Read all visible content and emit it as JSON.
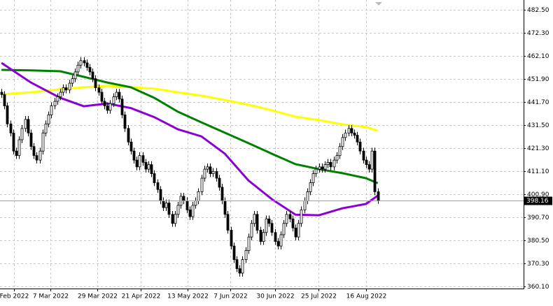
{
  "chart_data": {
    "type": "candlestick",
    "ylim": [
      359.2,
      486.8
    ],
    "xlim": [
      -0.5,
      177.6
    ],
    "grid": true,
    "yticks": [
      {
        "value": 482.5,
        "label": "482.50"
      },
      {
        "value": 472.3,
        "label": "472.30"
      },
      {
        "value": 462.1,
        "label": "462.10"
      },
      {
        "value": 451.9,
        "label": "451.90"
      },
      {
        "value": 441.7,
        "label": "441.70"
      },
      {
        "value": 431.5,
        "label": "431.50"
      },
      {
        "value": 421.3,
        "label": "421.30"
      },
      {
        "value": 411.1,
        "label": "411.10"
      },
      {
        "value": 400.9,
        "label": "400.90"
      },
      {
        "value": 390.7,
        "label": "390.70"
      },
      {
        "value": 380.5,
        "label": "380.50"
      },
      {
        "value": 370.3,
        "label": "370.30"
      },
      {
        "value": 360.1,
        "label": "360.10"
      }
    ],
    "xticks": [
      {
        "value": 4.3,
        "label": "Feb 2022"
      },
      {
        "value": 16.6,
        "label": "7 Mar 2022"
      },
      {
        "value": 32.6,
        "label": "29 Mar 2022"
      },
      {
        "value": 47.4,
        "label": "21 Apr 2022"
      },
      {
        "value": 63.3,
        "label": "13 May 2022"
      },
      {
        "value": 77.8,
        "label": "7 Jun 2022"
      },
      {
        "value": 93,
        "label": "30 Jun 2022"
      },
      {
        "value": 107.8,
        "label": "25 Jul 2022"
      },
      {
        "value": 124,
        "label": "16 Aug 2022"
      }
    ],
    "current_price": 398.16,
    "open": [
      446,
      445,
      440,
      432,
      428,
      420,
      418,
      425,
      430,
      434,
      428,
      422,
      418,
      416,
      420,
      428,
      432,
      436,
      440,
      442,
      444,
      446,
      448,
      447,
      450,
      452,
      455,
      458,
      460,
      459,
      457,
      455,
      452,
      448,
      446,
      442,
      440,
      438,
      441,
      444,
      446,
      443,
      436,
      430,
      424,
      420,
      416,
      413,
      418,
      415,
      412,
      414,
      410,
      406,
      403,
      398,
      395,
      397,
      392,
      388,
      392,
      396,
      400,
      398,
      394,
      391,
      396,
      398,
      402,
      408,
      412,
      413,
      410,
      411,
      408,
      404,
      398,
      392,
      385,
      378,
      372,
      368,
      366,
      372,
      376,
      382,
      388,
      392,
      385,
      380,
      384,
      390,
      388,
      384,
      380,
      378,
      383,
      388,
      392,
      390,
      386,
      382,
      388,
      394,
      398,
      402,
      406,
      410,
      412,
      413,
      412,
      414,
      415,
      413,
      416,
      418,
      422,
      426,
      428,
      430,
      428,
      427,
      424,
      420,
      416,
      414,
      412,
      420,
      402
    ],
    "high": [
      447.5,
      446.5,
      441.5,
      433.5,
      429.5,
      421.5,
      426.5,
      431.5,
      435.5,
      435.5,
      429.5,
      423.5,
      419.5,
      421.5,
      429.5,
      433.5,
      437.5,
      441.5,
      443.5,
      445.5,
      447.5,
      449.5,
      449.5,
      451.5,
      453.5,
      456.5,
      459.5,
      461.5,
      461.5,
      460.5,
      458.5,
      456.5,
      453.5,
      449.5,
      447.5,
      443.5,
      441.5,
      442.5,
      445.5,
      447.5,
      447.5,
      444.5,
      437.5,
      431.5,
      425.5,
      421.5,
      417.5,
      419.5,
      419.5,
      416.5,
      415.5,
      415.5,
      411.5,
      407.5,
      404.5,
      399.5,
      398.5,
      398.5,
      393.5,
      393.5,
      397.5,
      401.5,
      401.5,
      399.5,
      395.5,
      397.5,
      399.5,
      403.5,
      409.5,
      413.5,
      414.5,
      414.5,
      412.5,
      412.5,
      409.5,
      405.5,
      399.5,
      393.5,
      386.5,
      379.5,
      373.5,
      369.5,
      373.5,
      377.5,
      383.5,
      389.5,
      393.5,
      393.5,
      386.5,
      385.5,
      391.5,
      391.5,
      389.5,
      385.5,
      381.5,
      384.5,
      389.5,
      393.5,
      393.5,
      391.5,
      387.5,
      389.5,
      395.5,
      399.5,
      403.5,
      407.5,
      411.5,
      413.5,
      414.5,
      414.5,
      415.5,
      416.5,
      416.5,
      417.5,
      419.5,
      423.5,
      427.5,
      429.5,
      431.5,
      431.5,
      429.5,
      428.5,
      425.5,
      421.5,
      417.5,
      415.5,
      421.5,
      421.5,
      403.5
    ],
    "low": [
      443.5,
      438.5,
      430.5,
      426.5,
      418.5,
      416.5,
      416.5,
      423.5,
      428.5,
      426.5,
      420.5,
      416.5,
      414.5,
      414.5,
      418.5,
      426.5,
      430.5,
      434.5,
      438.5,
      440.5,
      442.5,
      444.5,
      445.5,
      445.5,
      448.5,
      450.5,
      453.5,
      456.5,
      457.5,
      455.5,
      453.5,
      450.5,
      446.5,
      444.5,
      440.5,
      438.5,
      436.5,
      436.5,
      439.5,
      442.5,
      441.5,
      434.5,
      428.5,
      422.5,
      418.5,
      414.5,
      411.5,
      411.5,
      413.5,
      410.5,
      410.5,
      408.5,
      404.5,
      401.5,
      396.5,
      393.5,
      393.5,
      390.5,
      386.5,
      386.5,
      390.5,
      394.5,
      396.5,
      392.5,
      389.5,
      389.5,
      394.5,
      396.5,
      400.5,
      406.5,
      410.5,
      408.5,
      408.5,
      406.5,
      402.5,
      396.5,
      390.5,
      383.5,
      376.5,
      370.5,
      366.5,
      364.5,
      364.5,
      370.5,
      374.5,
      380.5,
      386.5,
      383.5,
      378.5,
      378.5,
      382.5,
      386.5,
      382.5,
      378.5,
      376.5,
      376.5,
      381.5,
      386.5,
      388.5,
      384.5,
      380.5,
      380.5,
      386.5,
      392.5,
      396.5,
      400.5,
      404.5,
      408.5,
      410.5,
      410.5,
      410.5,
      412.5,
      411.5,
      411.5,
      414.5,
      416.5,
      420.5,
      424.5,
      426.5,
      426.5,
      425.5,
      422.5,
      418.5,
      414.5,
      412.5,
      410.5,
      410.5,
      400.5,
      396.66
    ],
    "close": [
      445,
      440,
      432,
      428,
      420,
      418,
      425,
      430,
      434,
      428,
      422,
      418,
      416,
      420,
      428,
      432,
      436,
      440,
      442,
      444,
      446,
      448,
      447,
      450,
      452,
      455,
      458,
      460,
      459,
      457,
      455,
      452,
      448,
      446,
      442,
      440,
      438,
      441,
      444,
      446,
      443,
      436,
      430,
      424,
      420,
      416,
      413,
      418,
      415,
      412,
      414,
      410,
      406,
      403,
      398,
      395,
      397,
      392,
      388,
      392,
      396,
      400,
      398,
      394,
      391,
      396,
      398,
      402,
      408,
      412,
      413,
      410,
      411,
      408,
      404,
      398,
      392,
      385,
      378,
      372,
      368,
      366,
      372,
      376,
      382,
      388,
      392,
      385,
      380,
      384,
      390,
      388,
      384,
      380,
      378,
      383,
      388,
      392,
      390,
      386,
      382,
      388,
      394,
      398,
      402,
      406,
      410,
      412,
      413,
      412,
      414,
      415,
      413,
      416,
      418,
      422,
      426,
      428,
      430,
      428,
      427,
      424,
      420,
      416,
      414,
      412,
      420,
      402,
      398.16
    ],
    "series": [
      {
        "color": "#ffff00",
        "x": [
          0,
          10,
          20,
          28,
          36,
          44,
          52,
          60,
          68,
          76,
          84,
          92,
          100,
          108,
          116,
          124,
          128
        ],
        "values": [
          445.1,
          446,
          447.3,
          448.2,
          448.8,
          448.2,
          447.6,
          446,
          444.5,
          442.6,
          440.5,
          438,
          435.2,
          433.7,
          431.8,
          430.6,
          429
        ]
      },
      {
        "color": "#008000",
        "x": [
          0,
          10,
          20,
          28,
          36,
          44,
          52,
          60,
          68,
          76,
          84,
          92,
          100,
          108,
          116,
          124,
          128
        ],
        "values": [
          455.9,
          455.7,
          455.3,
          452.8,
          450.3,
          448.2,
          443.5,
          437.4,
          432.7,
          428.1,
          423.5,
          418.8,
          414.2,
          412,
          410.2,
          408,
          405.8
        ]
      },
      {
        "color": "#8b00d6",
        "x": [
          0,
          10,
          20,
          28,
          36,
          44,
          52,
          60,
          68,
          76,
          84,
          92,
          100,
          108,
          116,
          124,
          128
        ],
        "values": [
          459,
          450.3,
          443.5,
          439.8,
          441,
          439,
          435,
          429.6,
          426.5,
          418.8,
          407,
          398.7,
          391.9,
          391.6,
          394.7,
          396.6,
          400.3
        ]
      }
    ]
  }
}
